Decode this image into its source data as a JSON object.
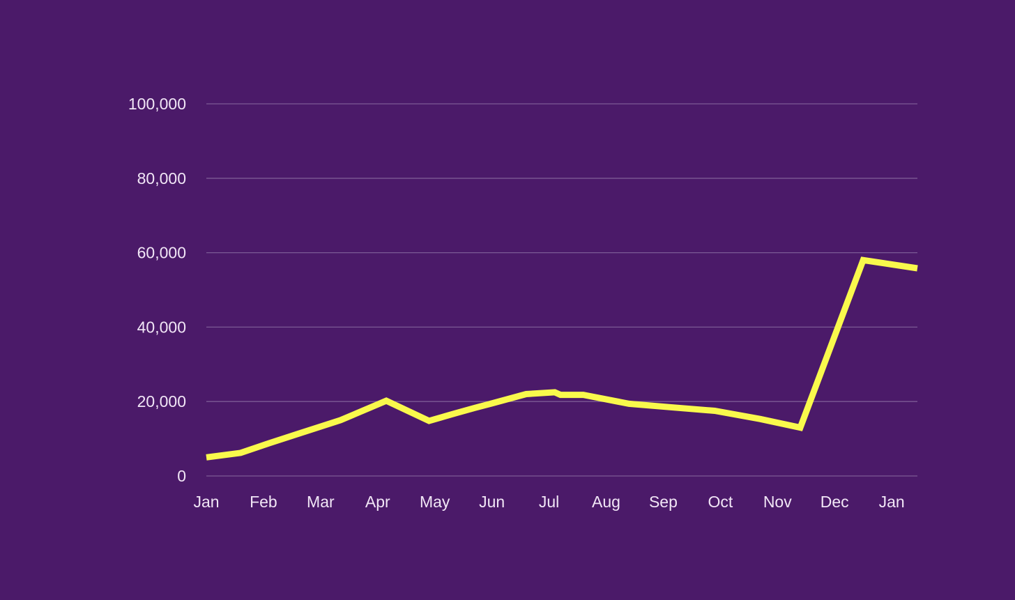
{
  "chart_data": {
    "type": "line",
    "title": "",
    "xlabel": "",
    "ylabel": "",
    "ylim": [
      0,
      100000
    ],
    "y_ticks": [
      0,
      20000,
      40000,
      60000,
      80000,
      100000
    ],
    "y_tick_labels": [
      "0",
      "20,000",
      "40,000",
      "60,000",
      "80,000",
      "100,000"
    ],
    "x_ticks": [
      0,
      1,
      2,
      3,
      4,
      5,
      6,
      7,
      8,
      9,
      10,
      11,
      12
    ],
    "x_tick_labels": [
      "Jan",
      "Feb",
      "Mar",
      "Apr",
      "May",
      "Jun",
      "Jul",
      "Aug",
      "Sep",
      "Oct",
      "Nov",
      "Dec",
      "Jan"
    ],
    "x_range": [
      0,
      12.45
    ],
    "grid": true,
    "legend": "none",
    "series": [
      {
        "color": "#f9f94c",
        "x": [
          0,
          0.6,
          1.1,
          1.6,
          2.35,
          3.15,
          3.9,
          4.35,
          4.7,
          5.0,
          5.6,
          6.1,
          6.2,
          6.6,
          7.4,
          8.1,
          8.9,
          9.7,
          10.4,
          11.5,
          12.45
        ],
        "y": [
          5000,
          6200,
          8800,
          11300,
          15000,
          20200,
          14800,
          16800,
          18300,
          19500,
          22000,
          22500,
          21800,
          21800,
          19400,
          18500,
          17500,
          15300,
          13000,
          58000,
          55800
        ]
      }
    ]
  },
  "colors": {
    "background": "#4b1a69",
    "line": "#f9f94c",
    "grid": "#7c5a95",
    "tick_text": "#f1e6f6"
  }
}
